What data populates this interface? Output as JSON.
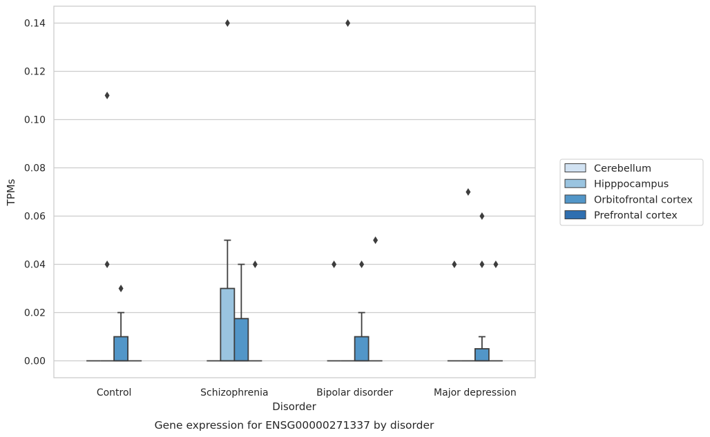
{
  "caption": "Gene expression for ENSG00000271337 by disorder",
  "chart_data": {
    "type": "box",
    "xlabel": "Disorder",
    "ylabel": "TPMs",
    "ylim": [
      -0.007,
      0.147
    ],
    "yticks": [
      "0.00",
      "0.02",
      "0.04",
      "0.06",
      "0.08",
      "0.10",
      "0.12",
      "0.14"
    ],
    "grid": true,
    "legend_position": "right",
    "categories": [
      "Control",
      "Schizophrenia",
      "Bipolar disorder",
      "Major depression"
    ],
    "series": [
      {
        "name": "Cerebellum",
        "color": "#d1e2f2"
      },
      {
        "name": "Hipppocampus",
        "color": "#9ac4e0"
      },
      {
        "name": "Orbitofrontal cortex",
        "color": "#5296c8"
      },
      {
        "name": "Prefrontal cortex",
        "color": "#2f6fb0"
      }
    ],
    "boxes": [
      {
        "category": "Control",
        "series": "Cerebellum",
        "min": 0,
        "q1": 0,
        "median": 0,
        "q3": 0,
        "max": 0,
        "outliers": []
      },
      {
        "category": "Control",
        "series": "Hipppocampus",
        "min": 0,
        "q1": 0,
        "median": 0,
        "q3": 0,
        "max": 0,
        "outliers": [
          0.04,
          0.11
        ]
      },
      {
        "category": "Control",
        "series": "Orbitofrontal cortex",
        "min": 0,
        "q1": 0,
        "median": 0,
        "q3": 0.01,
        "max": 0.02,
        "outliers": [
          0.03
        ]
      },
      {
        "category": "Control",
        "series": "Prefrontal cortex",
        "min": 0,
        "q1": 0,
        "median": 0,
        "q3": 0,
        "max": 0,
        "outliers": []
      },
      {
        "category": "Schizophrenia",
        "series": "Cerebellum",
        "min": 0,
        "q1": 0,
        "median": 0,
        "q3": 0,
        "max": 0,
        "outliers": []
      },
      {
        "category": "Schizophrenia",
        "series": "Hipppocampus",
        "min": 0,
        "q1": 0,
        "median": 0,
        "q3": 0.03,
        "max": 0.05,
        "outliers": [
          0.14
        ]
      },
      {
        "category": "Schizophrenia",
        "series": "Orbitofrontal cortex",
        "min": 0,
        "q1": 0,
        "median": 0,
        "q3": 0.0175,
        "max": 0.04,
        "outliers": []
      },
      {
        "category": "Schizophrenia",
        "series": "Prefrontal cortex",
        "min": 0,
        "q1": 0,
        "median": 0,
        "q3": 0,
        "max": 0,
        "outliers": [
          0.04
        ]
      },
      {
        "category": "Bipolar disorder",
        "series": "Cerebellum",
        "min": 0,
        "q1": 0,
        "median": 0,
        "q3": 0,
        "max": 0,
        "outliers": [
          0.04
        ]
      },
      {
        "category": "Bipolar disorder",
        "series": "Hipppocampus",
        "min": 0,
        "q1": 0,
        "median": 0,
        "q3": 0,
        "max": 0,
        "outliers": [
          0.14
        ]
      },
      {
        "category": "Bipolar disorder",
        "series": "Orbitofrontal cortex",
        "min": 0,
        "q1": 0,
        "median": 0,
        "q3": 0.01,
        "max": 0.02,
        "outliers": [
          0.04
        ]
      },
      {
        "category": "Bipolar disorder",
        "series": "Prefrontal cortex",
        "min": 0,
        "q1": 0,
        "median": 0,
        "q3": 0,
        "max": 0,
        "outliers": [
          0.05
        ]
      },
      {
        "category": "Major depression",
        "series": "Cerebellum",
        "min": 0,
        "q1": 0,
        "median": 0,
        "q3": 0,
        "max": 0,
        "outliers": [
          0.04
        ]
      },
      {
        "category": "Major depression",
        "series": "Hipppocampus",
        "min": 0,
        "q1": 0,
        "median": 0,
        "q3": 0,
        "max": 0,
        "outliers": [
          0.07
        ]
      },
      {
        "category": "Major depression",
        "series": "Orbitofrontal cortex",
        "min": 0,
        "q1": 0,
        "median": 0,
        "q3": 0.005,
        "max": 0.01,
        "outliers": [
          0.04,
          0.06
        ]
      },
      {
        "category": "Major depression",
        "series": "Prefrontal cortex",
        "min": 0,
        "q1": 0,
        "median": 0,
        "q3": 0,
        "max": 0,
        "outliers": [
          0.04
        ]
      }
    ]
  }
}
